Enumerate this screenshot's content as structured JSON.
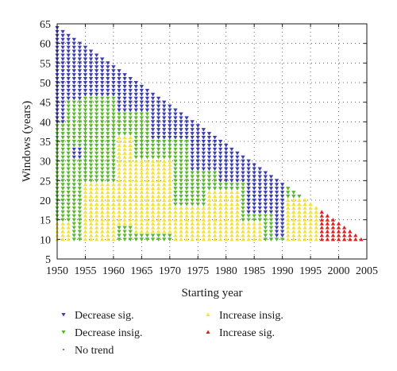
{
  "chart_data": {
    "type": "scatter",
    "xlabel": "Starting year",
    "ylabel": "Windows (years)",
    "xlim": [
      1950,
      2005
    ],
    "ylim": [
      5,
      65
    ],
    "xticks": [
      1950,
      1955,
      1960,
      1965,
      1970,
      1975,
      1980,
      1985,
      1990,
      1995,
      2000,
      2005
    ],
    "yticks": [
      5,
      10,
      15,
      20,
      25,
      30,
      35,
      40,
      45,
      50,
      55,
      60,
      65
    ],
    "grid": "dotted",
    "legend_position": "bottom",
    "window_rule": "window <= 2014 - starting_year, window >= 10",
    "categories": [
      {
        "key": "dec_sig",
        "name": "Decrease sig.",
        "color": "#3d3db0",
        "marker": "triangle-down"
      },
      {
        "key": "dec_insig",
        "name": "Decrease insig.",
        "color": "#5ab82c",
        "marker": "triangle-down"
      },
      {
        "key": "no_trend",
        "name": "No trend",
        "color": "#7a7a7a",
        "marker": "dot"
      },
      {
        "key": "inc_insig",
        "name": "Increase insig.",
        "color": "#f2e23a",
        "marker": "triangle-up"
      },
      {
        "key": "inc_sig",
        "name": "Increase sig.",
        "color": "#e01e1e",
        "marker": "triangle-up"
      }
    ],
    "point_rules": [
      {
        "category": "inc_sig",
        "x_range": [
          1997,
          2004
        ],
        "window_range": [
          10,
          17
        ]
      },
      {
        "category": "dec_sig",
        "x_range": [
          1950,
          1951
        ],
        "window_range": [
          40,
          64
        ]
      },
      {
        "category": "dec_sig",
        "x_range": [
          1952,
          1954
        ],
        "window_range": [
          46,
          64
        ]
      },
      {
        "category": "dec_sig",
        "x_range": [
          1955,
          1960
        ],
        "window_range": [
          47,
          64
        ]
      },
      {
        "category": "dec_sig",
        "x_range": [
          1961,
          1966
        ],
        "window_range": [
          43,
          64
        ]
      },
      {
        "category": "dec_sig",
        "x_range": [
          1967,
          1973
        ],
        "window_range": [
          36,
          64
        ]
      },
      {
        "category": "dec_sig",
        "x_range": [
          1974,
          1978
        ],
        "window_range": [
          28,
          64
        ]
      },
      {
        "category": "dec_sig",
        "x_range": [
          1979,
          1983
        ],
        "window_range": [
          25,
          64
        ]
      },
      {
        "category": "dec_sig",
        "x_range": [
          1984,
          1988
        ],
        "window_range": [
          17,
          64
        ]
      },
      {
        "category": "dec_sig",
        "x_range": [
          1989,
          1990
        ],
        "window_range": [
          11,
          64
        ]
      },
      {
        "category": "dec_sig",
        "x_range": [
          1953,
          1954
        ],
        "window_range": [
          31,
          33
        ]
      },
      {
        "category": "inc_insig",
        "x_range": [
          1955,
          1960
        ],
        "window_range": [
          10,
          24
        ]
      },
      {
        "category": "inc_insig",
        "x_range": [
          1961,
          1963
        ],
        "window_range": [
          14,
          36
        ]
      },
      {
        "category": "inc_insig",
        "x_range": [
          1964,
          1970
        ],
        "window_range": [
          12,
          30
        ]
      },
      {
        "category": "inc_insig",
        "x_range": [
          1971,
          1976
        ],
        "window_range": [
          10,
          18
        ]
      },
      {
        "category": "inc_insig",
        "x_range": [
          1977,
          1982
        ],
        "window_range": [
          10,
          22
        ]
      },
      {
        "category": "inc_insig",
        "x_range": [
          1983,
          1986
        ],
        "window_range": [
          10,
          14
        ]
      },
      {
        "category": "inc_insig",
        "x_range": [
          1991,
          1996
        ],
        "window_range": [
          10,
          20
        ]
      },
      {
        "category": "inc_insig",
        "x_range": [
          1950,
          1952
        ],
        "window_range": [
          10,
          14
        ]
      }
    ],
    "default_category": "dec_insig"
  }
}
